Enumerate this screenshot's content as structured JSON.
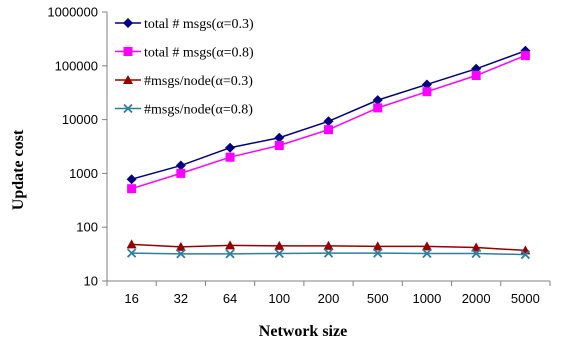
{
  "chart_data": {
    "type": "line",
    "title": "",
    "xlabel": "Network size",
    "ylabel": "Update cost",
    "y_scale": "log",
    "ylim": [
      10,
      1000000
    ],
    "y_ticks": [
      "10",
      "100",
      "1000",
      "10000",
      "100000",
      "1000000"
    ],
    "grid": false,
    "legend_placement": "top-left",
    "categories": [
      "16",
      "32",
      "64",
      "100",
      "200",
      "500",
      "1000",
      "2000",
      "5000"
    ],
    "series": [
      {
        "name": "total # msgs(α=0.3)",
        "color": "#000080",
        "marker": "diamond",
        "values": [
          780,
          1400,
          3000,
          4600,
          9300,
          23000,
          45000,
          88000,
          190000
        ]
      },
      {
        "name": "total # msgs(α=0.8)",
        "color": "#ff00ff",
        "marker": "square",
        "values": [
          520,
          1000,
          2000,
          3300,
          6500,
          16500,
          33000,
          66000,
          155000
        ]
      },
      {
        "name": "#msgs/node(α=0.3)",
        "color": "#990000",
        "marker": "triangle",
        "values": [
          48,
          43,
          46,
          45,
          45,
          44,
          44,
          42,
          37
        ]
      },
      {
        "name": "#msgs/node(α=0.8)",
        "color": "#2f7f9f",
        "marker": "x",
        "values": [
          33,
          32,
          32,
          32.5,
          33,
          33,
          32.5,
          32.5,
          31
        ]
      }
    ]
  }
}
